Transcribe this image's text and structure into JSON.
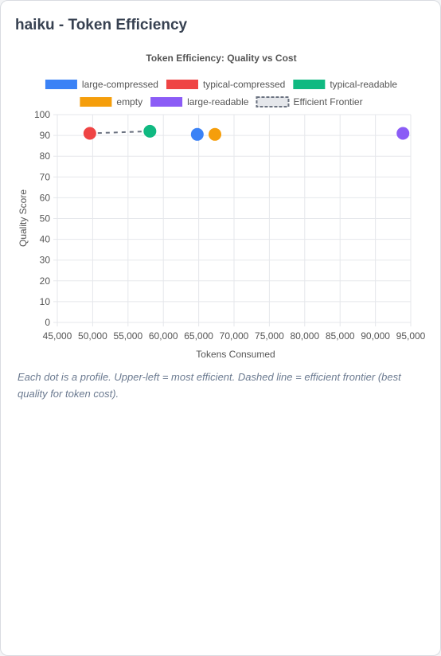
{
  "page": {
    "title": "haiku - Token Efficiency",
    "caption": "Each dot is a profile. Upper-left = most efficient. Dashed line = efficient frontier (best quality for token cost)."
  },
  "chart_data": {
    "type": "scatter",
    "title": "Token Efficiency: Quality vs Cost",
    "xlabel": "Tokens Consumed",
    "ylabel": "Quality Score",
    "xlim": [
      45000,
      95000
    ],
    "ylim": [
      0,
      100
    ],
    "xticks": [
      45000,
      50000,
      55000,
      60000,
      65000,
      70000,
      75000,
      80000,
      85000,
      90000,
      95000
    ],
    "yticks": [
      0,
      10,
      20,
      30,
      40,
      50,
      60,
      70,
      80,
      90,
      100
    ],
    "grid": true,
    "legend_position": "top",
    "series": [
      {
        "name": "large-compressed",
        "color": "#3b82f6",
        "x": 64800,
        "y": 90.5
      },
      {
        "name": "typical-compressed",
        "color": "#ef4444",
        "x": 49600,
        "y": 91
      },
      {
        "name": "typical-readable",
        "color": "#10b981",
        "x": 58100,
        "y": 92
      },
      {
        "name": "empty",
        "color": "#f59e0b",
        "x": 67300,
        "y": 90.5
      },
      {
        "name": "large-readable",
        "color": "#8b5cf6",
        "x": 93900,
        "y": 91
      }
    ],
    "frontier": {
      "name": "Efficient Frontier",
      "color": "#6b7280",
      "points": [
        [
          49600,
          91
        ],
        [
          58100,
          92
        ]
      ]
    }
  }
}
